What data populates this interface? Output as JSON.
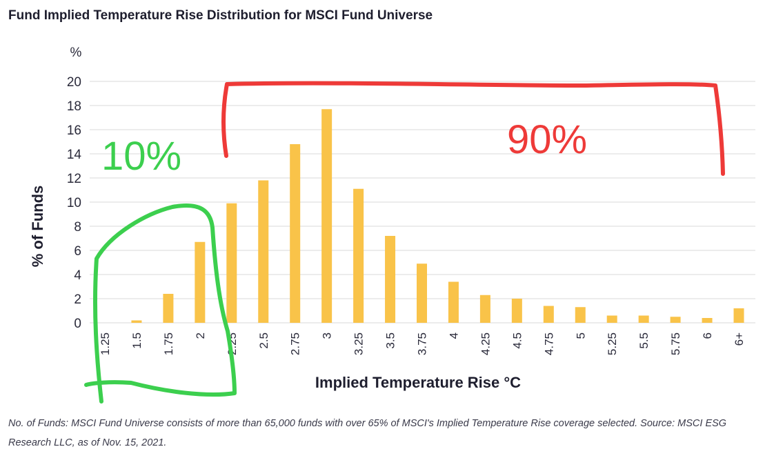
{
  "title": "Fund Implied Temperature Rise Distribution for MSCI Fund Universe",
  "footnote": "No. of Funds: MSCI Fund Universe consists of more than 65,000 funds with over 65% of MSCI's Implied Temperature Rise coverage selected. Source: MSCI ESG Research LLC, as of Nov. 15, 2021.",
  "annotations": {
    "green_label": "10%",
    "red_label": "90%",
    "green_color": "#3ccf4e",
    "red_color": "#ee3a38"
  },
  "chart_data": {
    "type": "bar",
    "title": "Fund Implied Temperature Rise Distribution for MSCI Fund Universe",
    "xlabel": "Implied Temperature Rise °C",
    "ylabel": "% of Funds",
    "yunit": "%",
    "ylim": [
      0,
      20
    ],
    "yticks": [
      0,
      2,
      4,
      6,
      8,
      10,
      12,
      14,
      16,
      18,
      20
    ],
    "grid": true,
    "bar_color": "#f9c349",
    "categories": [
      "1.25",
      "1.5",
      "1.75",
      "2",
      "2.25",
      "2.5",
      "2.75",
      "3",
      "3.25",
      "3.5",
      "3.75",
      "4",
      "4.25",
      "4.5",
      "4.75",
      "5",
      "5.25",
      "5.5",
      "5.75",
      "6",
      "6+"
    ],
    "values": [
      0,
      0.2,
      2.4,
      6.7,
      9.9,
      11.8,
      14.8,
      17.7,
      11.1,
      7.2,
      4.9,
      3.4,
      2.3,
      2.0,
      1.4,
      1.3,
      0.6,
      0.6,
      0.5,
      0.4,
      1.2
    ]
  }
}
